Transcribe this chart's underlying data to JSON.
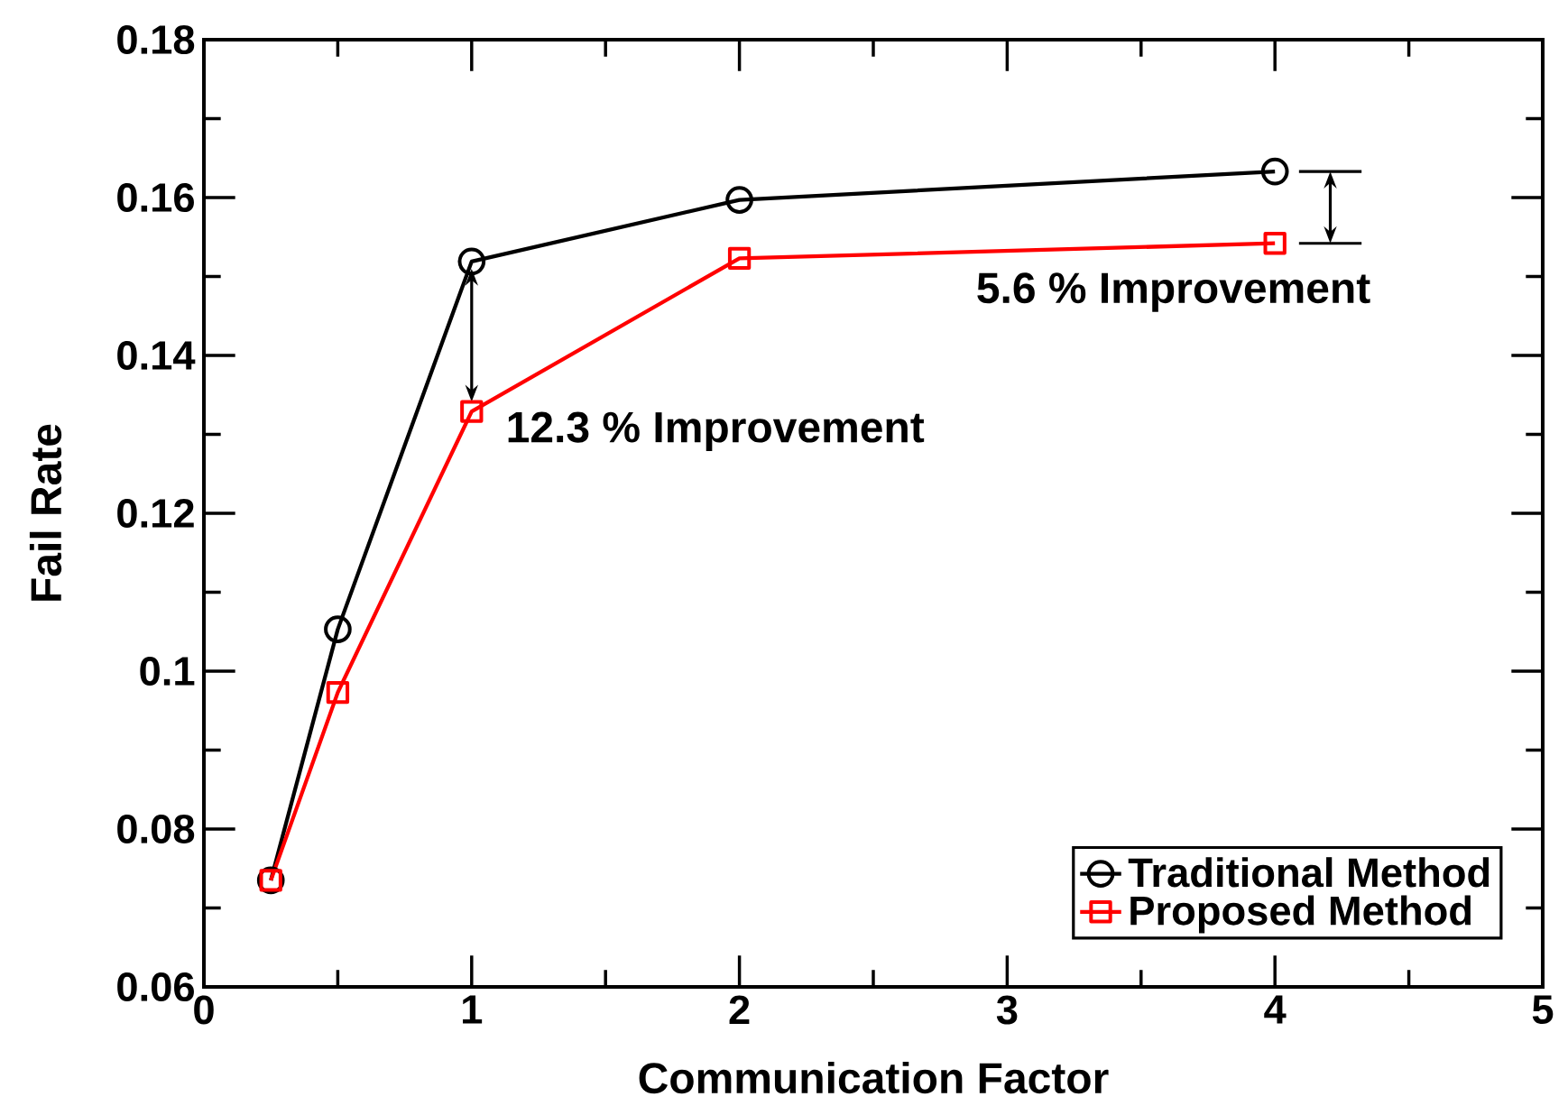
{
  "chart_data": {
    "type": "line",
    "xlabel": "Communication Factor",
    "ylabel": "Fail Rate",
    "x": [
      0.25,
      0.5,
      1,
      2,
      4
    ],
    "series": [
      {
        "name": "Traditional Method",
        "color": "#000000",
        "marker": "circle",
        "values": [
          0.0735,
          0.1053,
          0.1519,
          0.1597,
          0.1633
        ]
      },
      {
        "name": "Proposed Method",
        "color": "#ff0000",
        "marker": "square",
        "values": [
          0.0735,
          0.0973,
          0.1329,
          0.1523,
          0.1542
        ]
      }
    ],
    "annotations": [
      {
        "text": "12.3 % Improvement",
        "x": 1,
        "y": 0.1329
      },
      {
        "text": "5.6 % Improvement",
        "x": 4,
        "y": 0.1542
      }
    ],
    "xlim": [
      0,
      5
    ],
    "xticks": [
      0,
      1,
      2,
      3,
      4,
      5
    ],
    "ylim": [
      0.06,
      0.18
    ],
    "yticks": [
      0.06,
      0.08,
      0.1,
      0.12,
      0.14,
      0.16,
      0.18
    ],
    "grid": false,
    "legend": "bottom right",
    "line_style": "solid"
  }
}
